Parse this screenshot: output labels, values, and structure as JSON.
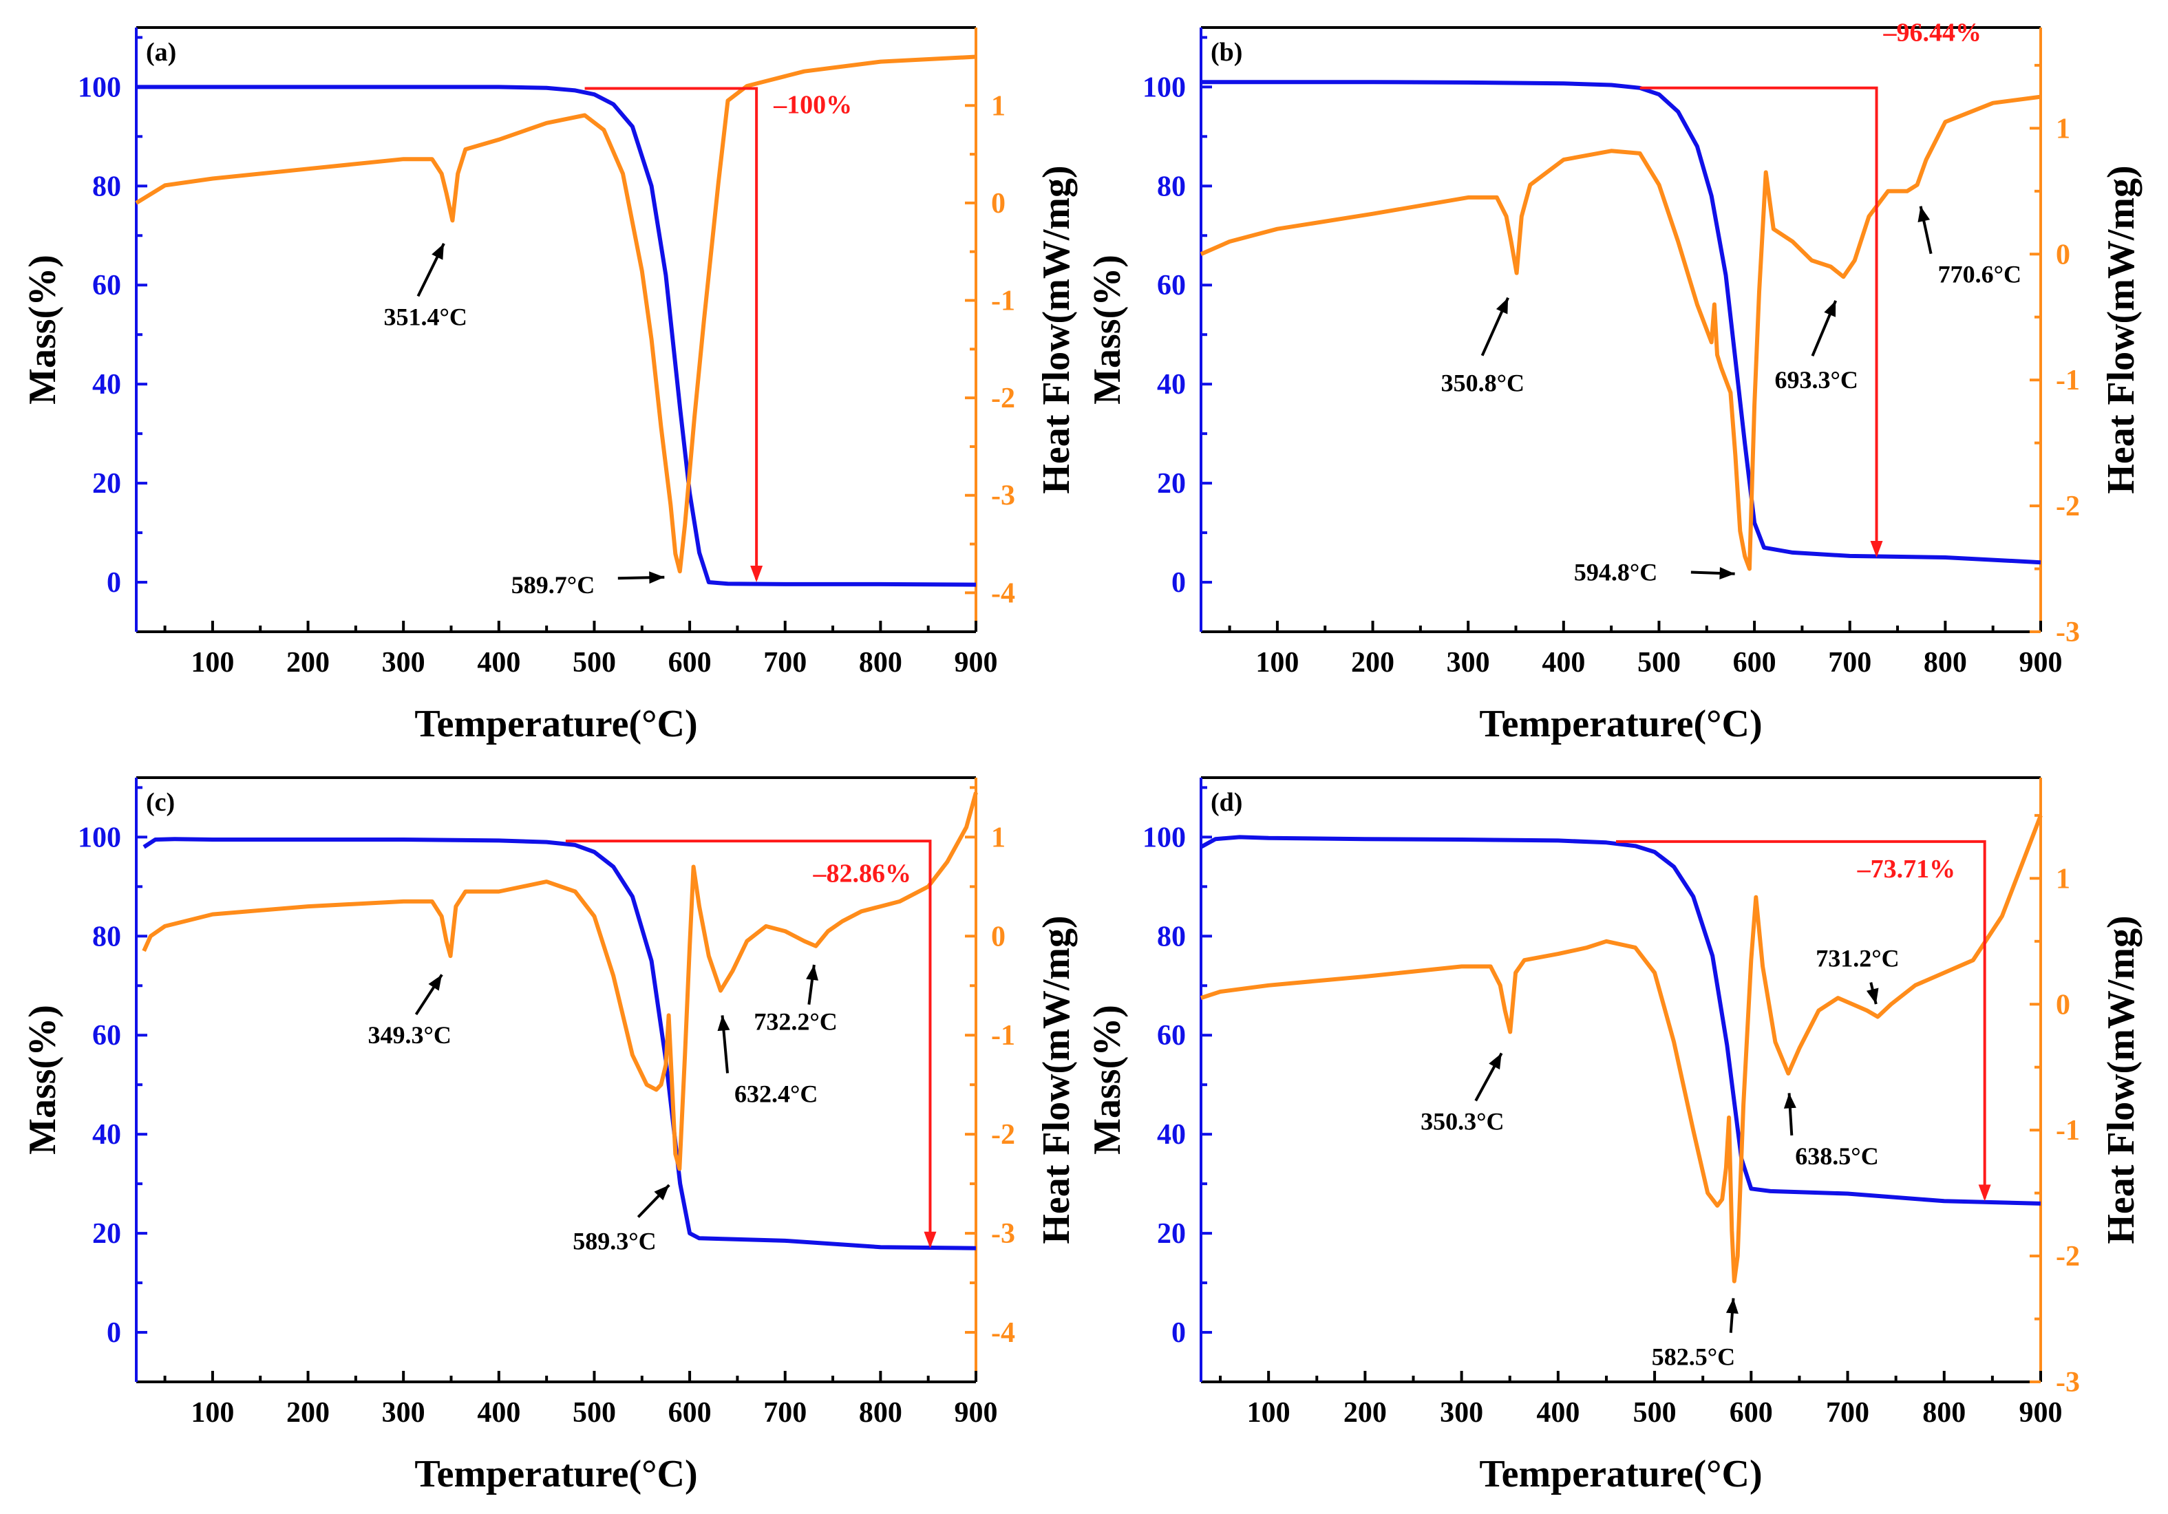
{
  "colors": {
    "mass": "#1010e8",
    "heat": "#ff8c1a",
    "loss": "#ff1a1a",
    "axis": "#000000"
  },
  "chart_data": [
    {
      "type": "line",
      "panel_label": "(a)",
      "xlabel": "Temperature(°C)",
      "ylabel_left": "Mass(%)",
      "ylabel_right": "Heat Flow(mW/mg)",
      "xlim": [
        20,
        900
      ],
      "ylim_left": [
        -10,
        112
      ],
      "ylim_right": [
        -4.4,
        1.8
      ],
      "xticks": [
        100,
        200,
        300,
        400,
        500,
        600,
        700,
        800,
        900
      ],
      "xtick_labels": [
        "100",
        "200",
        "300",
        "400",
        "500",
        "600",
        "700",
        "800",
        "900"
      ],
      "yticks_left": [
        0,
        20,
        40,
        60,
        80,
        100
      ],
      "ytick_labels_left": [
        "0",
        "20",
        "40",
        "60",
        "80",
        "100"
      ],
      "yticks_right": [
        -4,
        -3,
        -2,
        -1,
        0,
        1
      ],
      "ytick_labels_right": [
        "-4",
        "-3",
        "-2",
        "-1",
        "0",
        "1"
      ],
      "series": [
        {
          "name": "Mass",
          "axis": "left",
          "x": [
            20,
            100,
            200,
            300,
            400,
            450,
            480,
            500,
            520,
            540,
            560,
            575,
            590,
            600,
            610,
            620,
            640,
            700,
            800,
            900
          ],
          "values": [
            100,
            100,
            100,
            100,
            100,
            99.8,
            99.3,
            98.5,
            96.5,
            92,
            80,
            62,
            35,
            18,
            6,
            0,
            -0.3,
            -0.4,
            -0.4,
            -0.5
          ]
        },
        {
          "name": "Heat Flow",
          "axis": "right",
          "x": [
            20,
            50,
            100,
            200,
            300,
            330,
            340,
            345,
            351.4,
            357,
            365,
            400,
            450,
            490,
            510,
            530,
            550,
            560,
            570,
            580,
            585,
            589.7,
            595,
            605,
            615,
            630,
            640,
            660,
            680,
            700,
            720,
            800,
            900
          ],
          "values": [
            0.0,
            0.18,
            0.25,
            0.35,
            0.45,
            0.45,
            0.3,
            0.1,
            -0.18,
            0.3,
            0.55,
            0.65,
            0.82,
            0.9,
            0.75,
            0.3,
            -0.7,
            -1.4,
            -2.3,
            -3.1,
            -3.6,
            -3.78,
            -3.3,
            -2.2,
            -1.2,
            0.2,
            1.05,
            1.2,
            1.25,
            1.3,
            1.35,
            1.45,
            1.5
          ]
        }
      ],
      "annotations": [
        {
          "text": "351.4°C",
          "x": 351.4
        },
        {
          "text": "589.7°C",
          "x": 589.7
        }
      ],
      "mass_loss": {
        "text": "–100%",
        "x_start": 490,
        "x_drop": 670,
        "mass_top": 99.7,
        "mass_bottom": 0
      }
    },
    {
      "type": "line",
      "panel_label": "(b)",
      "xlabel": "Temperature(°C)",
      "ylabel_left": "Mass(%)",
      "ylabel_right": "Heat Flow(mW/mg)",
      "xlim": [
        20,
        900
      ],
      "ylim_left": [
        -10,
        112
      ],
      "ylim_right": [
        -3.0,
        1.8
      ],
      "xticks": [
        100,
        200,
        300,
        400,
        500,
        600,
        700,
        800,
        900
      ],
      "xtick_labels": [
        "100",
        "200",
        "300",
        "400",
        "500",
        "600",
        "700",
        "800",
        "900"
      ],
      "yticks_left": [
        0,
        20,
        40,
        60,
        80,
        100
      ],
      "ytick_labels_left": [
        "0",
        "20",
        "40",
        "60",
        "80",
        "100"
      ],
      "yticks_right": [
        -3,
        -2,
        -1,
        0,
        1
      ],
      "ytick_labels_right": [
        "-3",
        "-2",
        "-1",
        "0",
        "1"
      ],
      "series": [
        {
          "name": "Mass",
          "axis": "left",
          "x": [
            20,
            100,
            200,
            300,
            400,
            450,
            480,
            500,
            520,
            540,
            555,
            570,
            580,
            590,
            600,
            610,
            640,
            700,
            800,
            900
          ],
          "values": [
            101,
            101,
            101,
            100.9,
            100.7,
            100.4,
            99.8,
            98.5,
            95,
            88,
            78,
            62,
            45,
            28,
            12,
            7,
            6,
            5.3,
            5,
            4
          ]
        },
        {
          "name": "Heat Flow",
          "axis": "right",
          "x": [
            20,
            50,
            100,
            200,
            300,
            330,
            340,
            345,
            350.8,
            356,
            365,
            400,
            450,
            480,
            500,
            520,
            540,
            555,
            558,
            561,
            565,
            570,
            575,
            580,
            585,
            590,
            594.8,
            600,
            605,
            612,
            620,
            640,
            660,
            680,
            693.3,
            705,
            720,
            740,
            760,
            770.6,
            780,
            800,
            850,
            900
          ],
          "values": [
            0.0,
            0.1,
            0.2,
            0.32,
            0.45,
            0.45,
            0.3,
            0.1,
            -0.15,
            0.3,
            0.55,
            0.75,
            0.82,
            0.8,
            0.55,
            0.1,
            -0.4,
            -0.7,
            -0.4,
            -0.8,
            -0.9,
            -1.0,
            -1.1,
            -1.6,
            -2.2,
            -2.4,
            -2.5,
            -1.2,
            -0.3,
            0.65,
            0.2,
            0.1,
            -0.05,
            -0.1,
            -0.18,
            -0.05,
            0.3,
            0.5,
            0.5,
            0.55,
            0.75,
            1.05,
            1.2,
            1.25
          ]
        }
      ],
      "annotations": [
        {
          "text": "350.8°C",
          "x": 350.8
        },
        {
          "text": "594.8°C",
          "x": 594.8
        },
        {
          "text": "693.3°C",
          "x": 693.3
        },
        {
          "text": "770.6°C",
          "x": 770.6
        }
      ],
      "mass_loss": {
        "text": "–96.44%",
        "x_start": 480,
        "x_drop": 728,
        "mass_top": 99.8,
        "mass_bottom": 5
      }
    },
    {
      "type": "line",
      "panel_label": "(c)",
      "xlabel": "Temperature(°C)",
      "ylabel_left": "Mass(%)",
      "ylabel_right": "Heat Flow(mW/mg)",
      "xlim": [
        20,
        900
      ],
      "ylim_left": [
        -10,
        112
      ],
      "ylim_right": [
        -4.5,
        1.6
      ],
      "xticks": [
        100,
        200,
        300,
        400,
        500,
        600,
        700,
        800,
        900
      ],
      "xtick_labels": [
        "100",
        "200",
        "300",
        "400",
        "500",
        "600",
        "700",
        "800",
        "900"
      ],
      "yticks_left": [
        0,
        20,
        40,
        60,
        80,
        100
      ],
      "ytick_labels_left": [
        "0",
        "20",
        "40",
        "60",
        "80",
        "100"
      ],
      "yticks_right": [
        -4,
        -3,
        -2,
        -1,
        0,
        1
      ],
      "ytick_labels_right": [
        "-4",
        "-3",
        "-2",
        "-1",
        "0",
        "1"
      ],
      "series": [
        {
          "name": "Mass",
          "axis": "left",
          "x": [
            28,
            40,
            60,
            100,
            200,
            300,
            400,
            450,
            480,
            500,
            520,
            540,
            560,
            575,
            590,
            600,
            610,
            700,
            800,
            900
          ],
          "values": [
            98,
            99.5,
            99.6,
            99.5,
            99.5,
            99.5,
            99.3,
            99,
            98.4,
            97,
            94,
            88,
            75,
            55,
            30,
            20,
            19,
            18.5,
            17.2,
            17
          ]
        },
        {
          "name": "Heat Flow",
          "axis": "right",
          "x": [
            28,
            35,
            50,
            100,
            200,
            300,
            330,
            340,
            345,
            349.3,
            355,
            365,
            400,
            450,
            480,
            500,
            520,
            540,
            555,
            565,
            570,
            575,
            578,
            582,
            585,
            589.3,
            595,
            600,
            604,
            610,
            620,
            632.4,
            645,
            660,
            680,
            700,
            720,
            732.2,
            745,
            760,
            780,
            800,
            820,
            850,
            870,
            890,
            900
          ],
          "values": [
            -0.15,
            0.0,
            0.1,
            0.22,
            0.3,
            0.35,
            0.35,
            0.2,
            -0.05,
            -0.2,
            0.3,
            0.45,
            0.45,
            0.55,
            0.45,
            0.2,
            -0.4,
            -1.2,
            -1.5,
            -1.55,
            -1.5,
            -1.3,
            -0.8,
            -1.6,
            -2.2,
            -2.35,
            -1.2,
            -0.1,
            0.7,
            0.3,
            -0.2,
            -0.55,
            -0.35,
            -0.05,
            0.1,
            0.05,
            -0.05,
            -0.1,
            0.05,
            0.15,
            0.25,
            0.3,
            0.35,
            0.5,
            0.75,
            1.1,
            1.45
          ]
        }
      ],
      "annotations": [
        {
          "text": "349.3°C",
          "x": 349.3
        },
        {
          "text": "589.3°C",
          "x": 589.3
        },
        {
          "text": "632.4°C",
          "x": 632.4
        },
        {
          "text": "732.2°C",
          "x": 732.2
        }
      ],
      "mass_loss": {
        "text": "–82.86%",
        "x_start": 470,
        "x_drop": 852,
        "mass_top": 99.2,
        "mass_bottom": 17
      }
    },
    {
      "type": "line",
      "panel_label": "(d)",
      "xlabel": "Temperature(°C)",
      "ylabel_left": "Mass(%)",
      "ylabel_right": "Heat Flow(mW/mg)",
      "xlim": [
        30,
        900
      ],
      "ylim_left": [
        -10,
        112
      ],
      "ylim_right": [
        -3.0,
        1.8
      ],
      "xticks": [
        100,
        200,
        300,
        400,
        500,
        600,
        700,
        800,
        900
      ],
      "xtick_labels": [
        "100",
        "200",
        "300",
        "400",
        "500",
        "600",
        "700",
        "800",
        "900"
      ],
      "yticks_left": [
        0,
        20,
        40,
        60,
        80,
        100
      ],
      "ytick_labels_left": [
        "0",
        "20",
        "40",
        "60",
        "80",
        "100"
      ],
      "yticks_right": [
        -3,
        -2,
        -1,
        0,
        1
      ],
      "ytick_labels_right": [
        "-3",
        "-2",
        "-1",
        "0",
        "1"
      ],
      "series": [
        {
          "name": "Mass",
          "axis": "left",
          "x": [
            30,
            45,
            70,
            100,
            200,
            300,
            400,
            450,
            480,
            500,
            520,
            540,
            560,
            575,
            590,
            600,
            620,
            700,
            800,
            900
          ],
          "values": [
            98,
            99.6,
            100,
            99.8,
            99.6,
            99.5,
            99.3,
            98.9,
            98.2,
            97,
            94,
            88,
            76,
            58,
            35,
            29,
            28.5,
            28,
            26.5,
            26
          ]
        },
        {
          "name": "Heat Flow",
          "axis": "right",
          "x": [
            30,
            50,
            100,
            200,
            300,
            330,
            340,
            345,
            350.3,
            356,
            365,
            400,
            430,
            450,
            480,
            500,
            520,
            540,
            555,
            565,
            570,
            574,
            577,
            580,
            582.5,
            586,
            592,
            600,
            605,
            612,
            625,
            638.5,
            650,
            670,
            690,
            705,
            720,
            731.2,
            745,
            770,
            800,
            830,
            860,
            880,
            900
          ],
          "values": [
            0.05,
            0.1,
            0.15,
            0.22,
            0.3,
            0.3,
            0.15,
            -0.05,
            -0.22,
            0.25,
            0.35,
            0.4,
            0.45,
            0.5,
            0.45,
            0.25,
            -0.3,
            -1.0,
            -1.5,
            -1.6,
            -1.55,
            -1.3,
            -0.9,
            -1.8,
            -2.2,
            -2.0,
            -0.8,
            0.35,
            0.85,
            0.3,
            -0.3,
            -0.55,
            -0.35,
            -0.05,
            0.05,
            0.0,
            -0.05,
            -0.1,
            0.0,
            0.15,
            0.25,
            0.35,
            0.7,
            1.1,
            1.5
          ]
        }
      ],
      "annotations": [
        {
          "text": "350.3°C",
          "x": 350.3
        },
        {
          "text": "582.5°C",
          "x": 582.5
        },
        {
          "text": "638.5°C",
          "x": 638.5
        },
        {
          "text": "731.2°C",
          "x": 731.2
        }
      ],
      "mass_loss": {
        "text": "–73.71%",
        "x_start": 460,
        "x_drop": 842,
        "mass_top": 99.1,
        "mass_bottom": 26.5
      }
    }
  ]
}
